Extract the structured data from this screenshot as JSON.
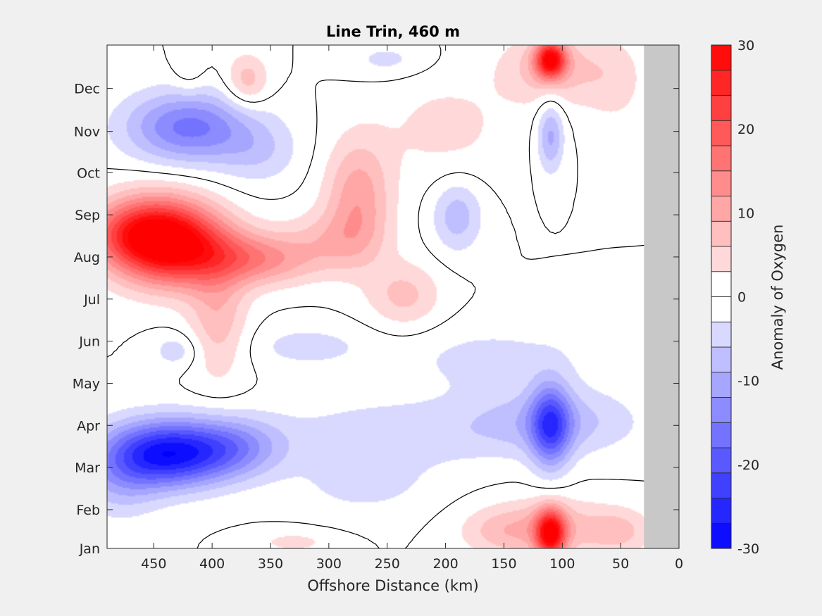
{
  "chart_data": {
    "type": "heatmap",
    "subtype": "filled-contour",
    "title": "Line Trin, 460 m",
    "xlabel": "Offshore Distance (km)",
    "ylabel": "",
    "xlim": [
      490,
      0
    ],
    "x_reversed": true,
    "xticks": [
      450,
      400,
      350,
      300,
      250,
      200,
      150,
      100,
      50,
      0
    ],
    "xtick_labels": [
      "450",
      "400",
      "350",
      "300",
      "250",
      "200",
      "150",
      "100",
      "50",
      "0"
    ],
    "ylim": [
      1,
      12.95
    ],
    "yticks": [
      1,
      1.92,
      2.92,
      3.92,
      4.92,
      5.92,
      6.92,
      7.92,
      8.92,
      9.92,
      10.9,
      11.92
    ],
    "ytick_labels": [
      "Jan",
      "Feb",
      "Mar",
      "Apr",
      "May",
      "Jun",
      "Jul",
      "Aug",
      "Sep",
      "Oct",
      "Nov",
      "Dec"
    ],
    "no_data_region": {
      "x_from": 30,
      "x_to": 0,
      "color": "#c8c8c8"
    },
    "contour_line_level": 0,
    "contour_step": 3,
    "colorbar": {
      "label": "Anomaly of Oxygen",
      "clim": [
        -30,
        30
      ],
      "ticks": [
        30,
        20,
        10,
        0,
        -10,
        -20,
        -30
      ],
      "tick_labels": [
        "30",
        "20",
        "10",
        "0",
        "-10",
        "-20",
        "-30"
      ],
      "negative_color": "#0000ff",
      "zero_color": "#ffffff",
      "positive_color": "#ff0000"
    },
    "field": {
      "background": 0,
      "features": [
        {
          "x": 445,
          "y": 8.35,
          "sx": 34,
          "sy": 0.7,
          "value": 29
        },
        {
          "x": 470,
          "y": 8.5,
          "sx": 30,
          "sy": 0.5,
          "value": 8
        },
        {
          "x": 370,
          "y": 7.9,
          "sx": 28,
          "sy": 0.45,
          "value": 9
        },
        {
          "x": 395,
          "y": 6.4,
          "sx": 18,
          "sy": 1.0,
          "value": 8
        },
        {
          "x": 415,
          "y": 8.0,
          "sx": 30,
          "sy": 0.6,
          "value": 10
        },
        {
          "x": 340,
          "y": 7.8,
          "sx": 30,
          "sy": 0.4,
          "value": 5
        },
        {
          "x": 275,
          "y": 9.3,
          "sx": 20,
          "sy": 1.0,
          "value": 11
        },
        {
          "x": 300,
          "y": 8.3,
          "sx": 30,
          "sy": 0.5,
          "value": 6
        },
        {
          "x": 235,
          "y": 7.0,
          "sx": 22,
          "sy": 0.55,
          "value": 7
        },
        {
          "x": 370,
          "y": 12.1,
          "sx": 13,
          "sy": 0.45,
          "value": 8
        },
        {
          "x": 420,
          "y": 12.3,
          "sx": 10,
          "sy": 0.4,
          "value": 3
        },
        {
          "x": 110,
          "y": 12.6,
          "sx": 9,
          "sy": 0.3,
          "value": 27
        },
        {
          "x": 110,
          "y": 12.4,
          "sx": 30,
          "sy": 0.6,
          "value": 8
        },
        {
          "x": 55,
          "y": 12.1,
          "sx": 20,
          "sy": 0.8,
          "value": 4
        },
        {
          "x": 110,
          "y": 1.35,
          "sx": 9,
          "sy": 0.4,
          "value": 27
        },
        {
          "x": 110,
          "y": 1.5,
          "sx": 35,
          "sy": 0.5,
          "value": 8
        },
        {
          "x": 155,
          "y": 1.4,
          "sx": 25,
          "sy": 0.4,
          "value": 5
        },
        {
          "x": 50,
          "y": 1.4,
          "sx": 20,
          "sy": 0.4,
          "value": 6
        },
        {
          "x": 200,
          "y": 11.0,
          "sx": 40,
          "sy": 0.9,
          "value": 4
        },
        {
          "x": 330,
          "y": 1.15,
          "sx": 25,
          "sy": 0.2,
          "value": 4
        },
        {
          "x": 440,
          "y": 3.25,
          "sx": 38,
          "sy": 0.55,
          "value": -28
        },
        {
          "x": 380,
          "y": 3.4,
          "sx": 30,
          "sy": 0.5,
          "value": -10
        },
        {
          "x": 420,
          "y": 11.0,
          "sx": 38,
          "sy": 0.6,
          "value": -16
        },
        {
          "x": 360,
          "y": 10.4,
          "sx": 25,
          "sy": 0.55,
          "value": -5
        },
        {
          "x": 110,
          "y": 3.9,
          "sx": 12,
          "sy": 0.7,
          "value": -18
        },
        {
          "x": 110,
          "y": 4.0,
          "sx": 50,
          "sy": 0.55,
          "value": -8
        },
        {
          "x": 110,
          "y": 10.8,
          "sx": 8,
          "sy": 0.6,
          "value": -10
        },
        {
          "x": 190,
          "y": 8.9,
          "sx": 15,
          "sy": 0.6,
          "value": -8
        },
        {
          "x": 250,
          "y": 3.7,
          "sx": 70,
          "sy": 0.6,
          "value": -5
        },
        {
          "x": 270,
          "y": 2.5,
          "sx": 40,
          "sy": 0.5,
          "value": -4
        },
        {
          "x": 320,
          "y": 5.8,
          "sx": 40,
          "sy": 0.4,
          "value": -4
        },
        {
          "x": 160,
          "y": 5.5,
          "sx": 60,
          "sy": 0.6,
          "value": -4
        },
        {
          "x": 430,
          "y": 5.7,
          "sx": 15,
          "sy": 0.3,
          "value": -5
        },
        {
          "x": 480,
          "y": 2.5,
          "sx": 25,
          "sy": 0.6,
          "value": -6
        },
        {
          "x": 250,
          "y": 12.6,
          "sx": 25,
          "sy": 0.3,
          "value": -4
        }
      ]
    }
  }
}
